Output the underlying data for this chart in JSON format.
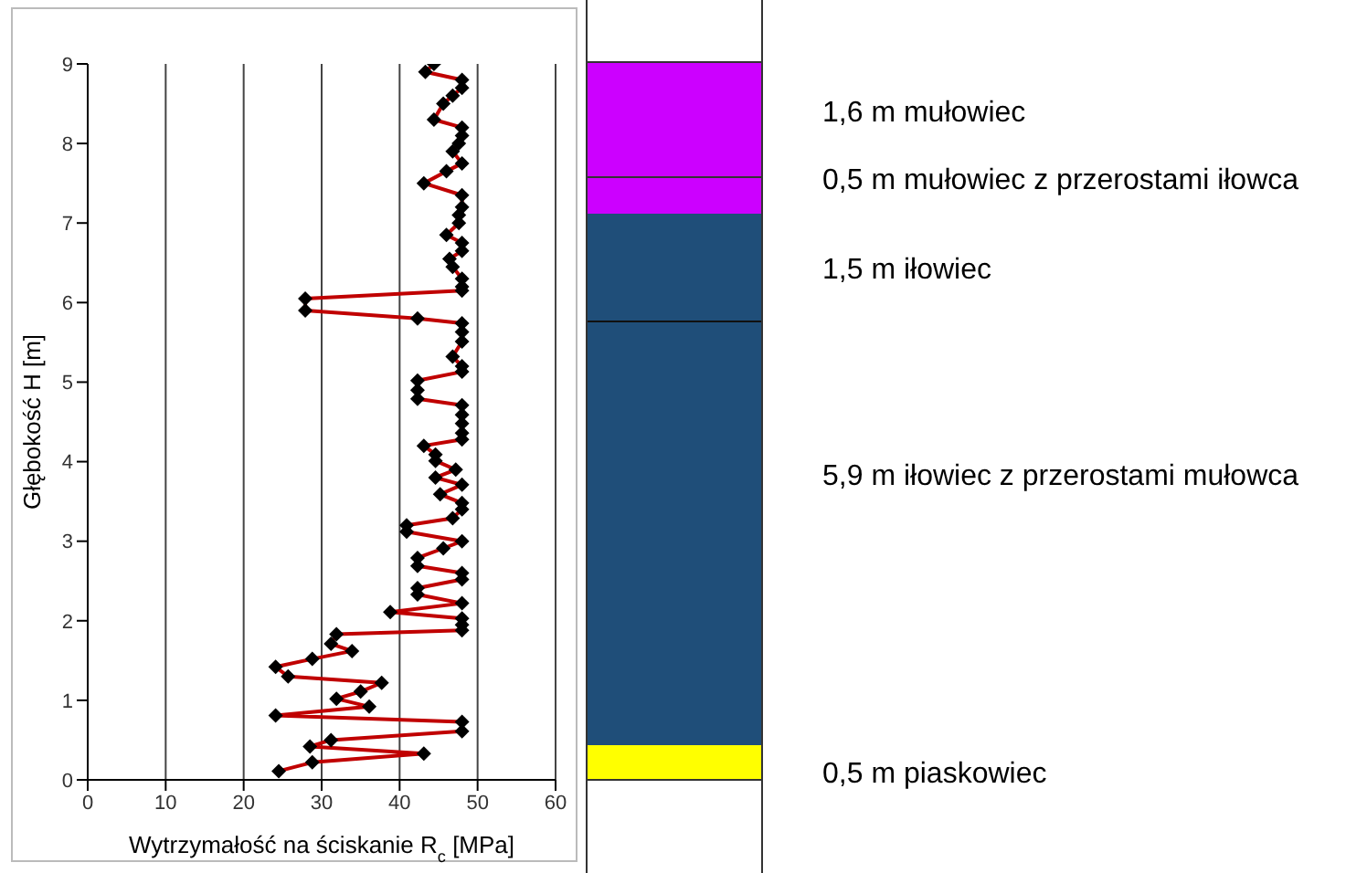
{
  "chart_data": {
    "type": "line",
    "xlabel": "Wytrzymałość na ściskanie R$_{c}$ [MPa]",
    "ylabel": "Głębokość H [m]",
    "xlim": [
      0,
      60
    ],
    "xticks": [
      0,
      10,
      20,
      30,
      40,
      50,
      60
    ],
    "ylim": [
      0,
      9
    ],
    "yticks": [
      0,
      1,
      2,
      3,
      4,
      5,
      6,
      7,
      8,
      9
    ],
    "grid": "x",
    "marker": "diamond",
    "line_style": "solid",
    "series": [
      {
        "color": "#c00000",
        "x": [
          44.4,
          43.3,
          48,
          48,
          46.8,
          45.6,
          44.4,
          48,
          48,
          47.6,
          46.8,
          48,
          46,
          43.1,
          48,
          48,
          47.6,
          47.6,
          46,
          48,
          48,
          46.4,
          46.8,
          48,
          48,
          48,
          27.9,
          27.9,
          42.3,
          48,
          48,
          48,
          46.8,
          48,
          48,
          42.3,
          42.3,
          42.3,
          48,
          48,
          48,
          48,
          48,
          43.1,
          44.6,
          44.6,
          47.2,
          44.6,
          48,
          45.2,
          48,
          48,
          46.8,
          40.9,
          40.9,
          48,
          45.6,
          42.3,
          42.3,
          48,
          48,
          42.3,
          42.3,
          48,
          38.8,
          48,
          48,
          48,
          31.9,
          31.2,
          33.9,
          28.8,
          24.1,
          25.7,
          37.7,
          35,
          31.9,
          36.1,
          24.1,
          48,
          48,
          31.2,
          28.5,
          43.1,
          28.8,
          24.5
        ],
        "values": [
          9.0,
          8.9,
          8.8,
          8.7,
          8.6,
          8.5,
          8.3,
          8.2,
          8.1,
          8.0,
          7.9,
          7.75,
          7.65,
          7.5,
          7.35,
          7.2,
          7.1,
          7.0,
          6.85,
          6.75,
          6.65,
          6.55,
          6.45,
          6.3,
          6.2,
          6.15,
          6.05,
          5.9,
          5.8,
          5.74,
          5.63,
          5.51,
          5.32,
          5.2,
          5.13,
          5.02,
          4.9,
          4.79,
          4.71,
          4.59,
          4.48,
          4.36,
          4.28,
          4.2,
          4.09,
          4.01,
          3.9,
          3.8,
          3.71,
          3.59,
          3.48,
          3.4,
          3.29,
          3.2,
          3.12,
          3.0,
          2.91,
          2.79,
          2.69,
          2.6,
          2.52,
          2.41,
          2.33,
          2.22,
          2.11,
          2.03,
          1.95,
          1.88,
          1.83,
          1.71,
          1.62,
          1.52,
          1.42,
          1.3,
          1.22,
          1.11,
          1.02,
          0.92,
          0.81,
          0.73,
          0.61,
          0.5,
          0.42,
          0.33,
          0.22,
          0.11
        ]
      }
    ],
    "annotations": [
      "1,6 m mułowiec",
      "0,5 m mułowiec z przerostami iłowca",
      "1,5 m iłowiec",
      "5,9 m iłowiec z przerostami mułowca",
      "0,5 m piaskowiec"
    ]
  }
}
